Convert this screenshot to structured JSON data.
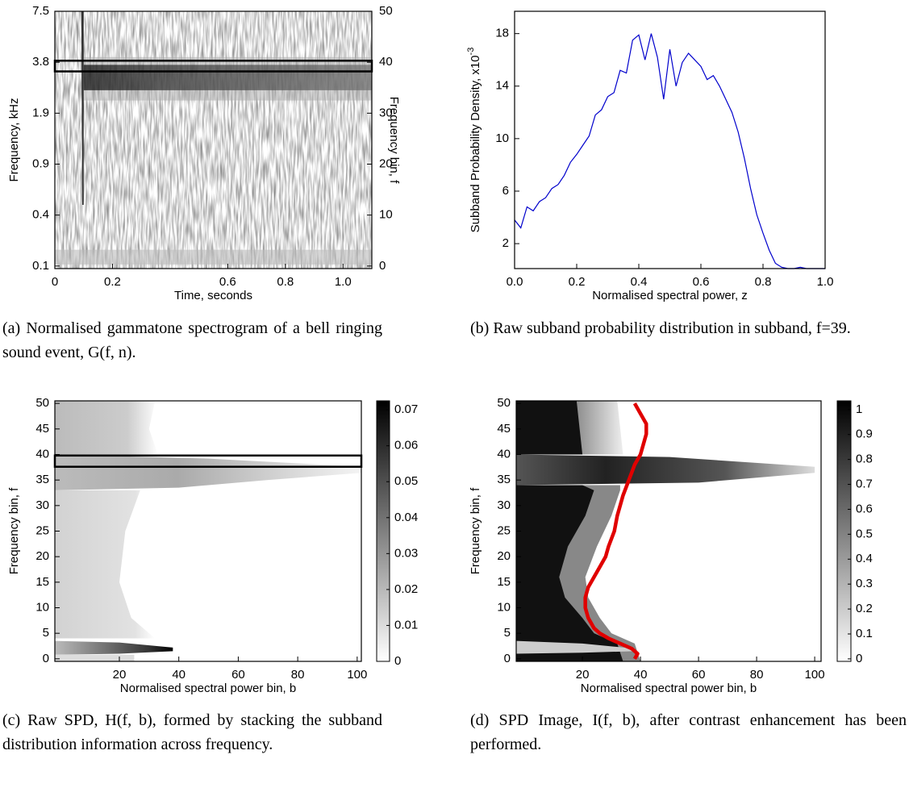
{
  "chart_data": [
    {
      "type": "spectrogram",
      "caption": "(a) Normalised gammatone spectrogram of a bell ringing sound event, G(f, n).",
      "x_label": "Time, seconds",
      "y_label": "Frequency, kHz",
      "y2_label": "Frequency bin, f",
      "xlim": [
        0,
        1.1
      ],
      "xticks": [
        0,
        0.2,
        0.6,
        0.8,
        {
          "value": 1.0,
          "label": "1.0"
        }
      ],
      "yticks": [
        0.1,
        0.4,
        0.9,
        1.9,
        3.8,
        7.5
      ],
      "y2lim": [
        -0.5,
        50
      ],
      "y2ticks": [
        0,
        10,
        20,
        30,
        40,
        50
      ]
    },
    {
      "type": "line",
      "caption": "(b) Raw subband probability distribution in subband, f=39.",
      "x_label": "Normalised spectral power, z",
      "y_label": "Subband Probability Density, x10",
      "y_label_exponent": "-3",
      "xlim": [
        0,
        1
      ],
      "xticks": [
        {
          "value": 0,
          "label": "0.0"
        },
        0.2,
        0.4,
        0.6,
        0.8,
        {
          "value": 1,
          "label": "1.0"
        }
      ],
      "ylim": [
        0.1,
        19.7
      ],
      "yticks": [
        2,
        6,
        10,
        14,
        18
      ],
      "x": [
        0,
        0.02,
        0.04,
        0.06,
        0.08,
        0.1,
        0.12,
        0.14,
        0.16,
        0.18,
        0.2,
        0.22,
        0.24,
        0.26,
        0.28,
        0.3,
        0.32,
        0.34,
        0.36,
        0.38,
        0.4,
        0.42,
        0.44,
        0.46,
        0.48,
        0.5,
        0.52,
        0.54,
        0.56,
        0.58,
        0.6,
        0.62,
        0.64,
        0.66,
        0.68,
        0.7,
        0.72,
        0.74,
        0.76,
        0.78,
        0.8,
        0.82,
        0.84,
        0.86,
        0.88,
        0.9,
        0.92,
        0.94,
        0.96,
        0.98,
        1
      ],
      "series": [
        {
          "color": "#0000cc",
          "values": [
            3.8,
            3.2,
            4.8,
            4.5,
            5.2,
            5.5,
            6.2,
            6.5,
            7.2,
            8.2,
            8.8,
            9.5,
            10.2,
            11.8,
            12.2,
            13.2,
            13.5,
            15.2,
            15.0,
            17.5,
            17.9,
            16.0,
            18.0,
            16.2,
            13.0,
            16.8,
            14.0,
            15.8,
            16.5,
            16.0,
            15.5,
            14.5,
            14.8,
            14.0,
            13.0,
            12.0,
            10.5,
            8.5,
            6.2,
            4.2,
            2.8,
            1.5,
            0.5,
            0.2,
            0.1,
            0.1,
            0.2,
            0.1,
            0.1,
            0.1,
            0.1
          ]
        }
      ]
    },
    {
      "type": "heatmap",
      "caption": "(c) Raw SPD, H(f, b), formed by stacking the subband distribution information across frequency.",
      "x_label": "Normalised spectral power bin, b",
      "y_label": "Frequency bin, f",
      "xlim": [
        -1.7,
        101.4
      ],
      "xticks": [
        20,
        40,
        60,
        80,
        100
      ],
      "ylim": [
        -0.5,
        50.5
      ],
      "yticks": [
        0,
        5,
        10,
        15,
        20,
        25,
        30,
        35,
        40,
        45,
        50
      ],
      "colorbar": {
        "lim": [
          0,
          0.0725
        ],
        "ticks": [
          0,
          0.01,
          0.02,
          0.03,
          0.04,
          0.05,
          0.06,
          0.07
        ]
      }
    },
    {
      "type": "heatmap",
      "caption": "(d) SPD Image, I(f, b), after contrast enhancement has been performed.",
      "x_label": "Normalised spectral power bin, b",
      "y_label": "Frequency bin, f",
      "xlim": [
        -2.8,
        102.2
      ],
      "xticks": [
        20,
        40,
        60,
        80,
        100
      ],
      "ylim": [
        -0.5,
        50.5
      ],
      "yticks": [
        0,
        5,
        10,
        15,
        20,
        25,
        30,
        35,
        40,
        45,
        50
      ],
      "colorbar": {
        "lim": [
          -0.01,
          1.035
        ],
        "ticks": [
          0,
          0.1,
          0.2,
          0.3,
          0.4,
          0.5,
          0.6,
          0.7,
          0.8,
          0.9,
          1
        ]
      },
      "curve": {
        "color": "#e00000",
        "f": [
          0,
          1,
          2,
          3,
          4,
          5,
          6,
          8,
          10,
          12,
          14,
          16,
          18,
          20,
          22,
          25,
          28,
          30,
          32,
          35,
          38,
          40,
          42,
          44,
          46,
          48,
          50
        ],
        "b": [
          38,
          39,
          37,
          33,
          29,
          26,
          24,
          22,
          21,
          21,
          22,
          24,
          26,
          28,
          29,
          31,
          32,
          33,
          34,
          36,
          38,
          40,
          41,
          42,
          42,
          40,
          38
        ]
      }
    }
  ]
}
